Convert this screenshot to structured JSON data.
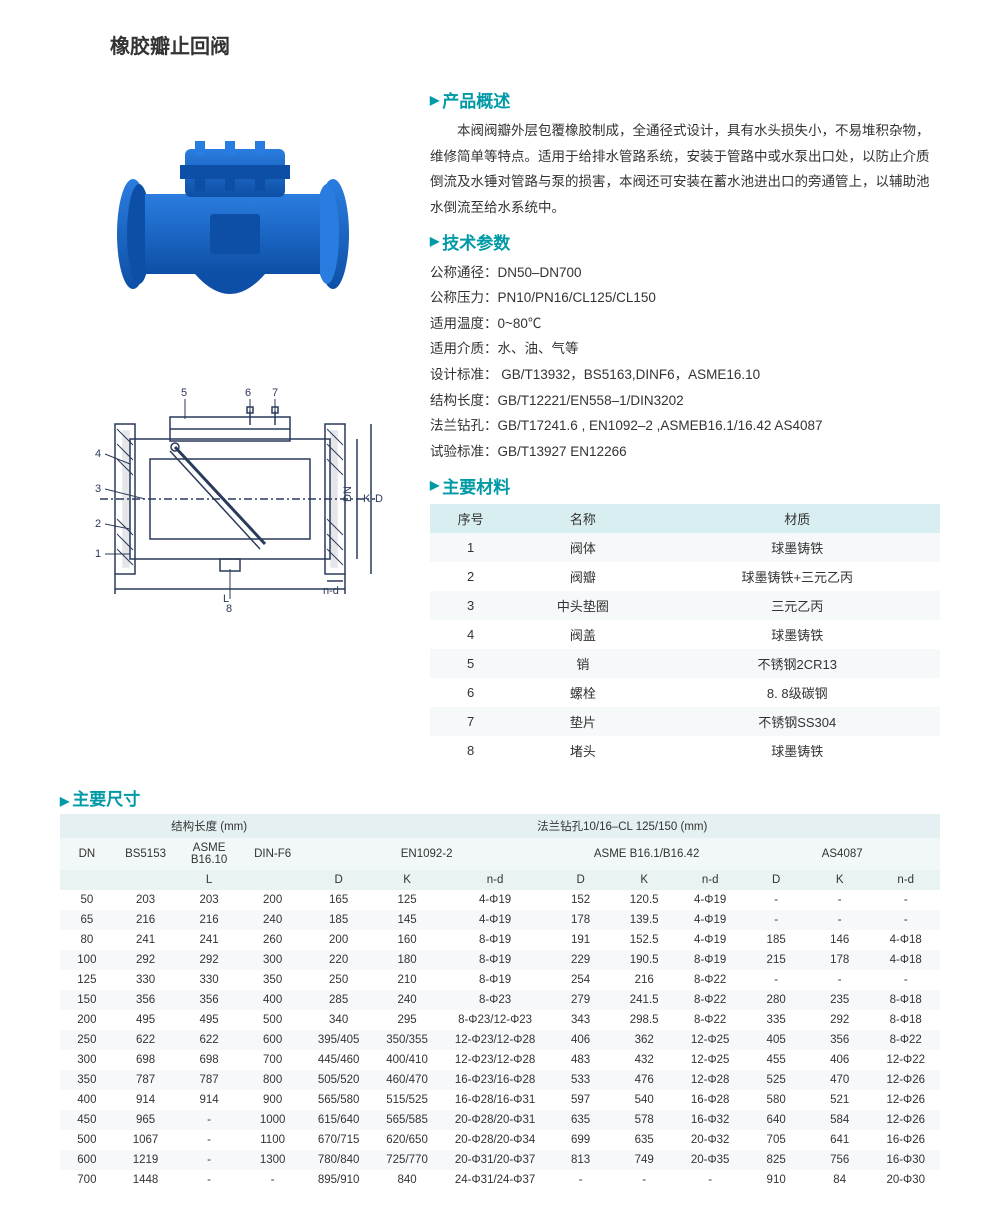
{
  "title": "橡胶瓣止回阀",
  "sections": {
    "overview": {
      "heading": "产品概述",
      "text": "本阀阀瓣外层包覆橡胶制成，全通径式设计，具有水头损失小，不易堆积杂物，维修简单等特点。适用于给排水管路系统，安装于管路中或水泵出口处，以防止介质倒流及水锤对管路与泵的损害，本阀还可安装在蓄水池进出口的旁通管上，以辅助池水倒流至给水系统中。"
    },
    "tech": {
      "heading": "技术参数",
      "lines": [
        "公称通径：DN50–DN700",
        "公称压力：PN10/PN16/CL125/CL150",
        "适用温度：0~80℃",
        "适用介质：水、油、气等",
        "设计标准： GB/T13932，BS5163,DINF6，ASME16.10",
        "结构长度：GB/T12221/EN558–1/DIN3202",
        "法兰钻孔：GB/T17241.6 , EN1092–2 ,ASMEB16.1/16.42 AS4087",
        "试验标准：GB/T13927  EN12266"
      ]
    },
    "materials": {
      "heading": "主要材料",
      "columns": [
        "序号",
        "名称",
        "材质"
      ],
      "rows": [
        [
          "1",
          "阀体",
          "球墨铸铁"
        ],
        [
          "2",
          "阀瓣",
          "球墨铸铁+三元乙丙"
        ],
        [
          "3",
          "中头垫圈",
          "三元乙丙"
        ],
        [
          "4",
          "阀盖",
          "球墨铸铁"
        ],
        [
          "5",
          "销",
          "不锈钢2CR13"
        ],
        [
          "6",
          "螺栓",
          "8. 8级碳钢"
        ],
        [
          "7",
          "垫片",
          "不锈钢SS304"
        ],
        [
          "8",
          "堵头",
          "球墨铸铁"
        ]
      ]
    },
    "dims": {
      "heading": "主要尺寸",
      "header_row1": {
        "g1": "结构长度  (mm)",
        "g2": "法兰钻孔10/16–CL 125/150 (mm)"
      },
      "header_row2": [
        "DN",
        "BS5153",
        "ASME B16.10",
        "DIN-F6",
        "EN1092-2",
        "ASME B16.1/B16.42",
        "AS4087"
      ],
      "header_row3": [
        "",
        "L",
        "",
        "",
        "D",
        "K",
        "n-d",
        "D",
        "K",
        "n-d",
        "D",
        "K",
        "n-d"
      ],
      "rows": [
        [
          "50",
          "203",
          "203",
          "200",
          "165",
          "125",
          "4-Φ19",
          "152",
          "120.5",
          "4-Φ19",
          "-",
          "-",
          "-"
        ],
        [
          "65",
          "216",
          "216",
          "240",
          "185",
          "145",
          "4-Φ19",
          "178",
          "139.5",
          "4-Φ19",
          "-",
          "-",
          "-"
        ],
        [
          "80",
          "241",
          "241",
          "260",
          "200",
          "160",
          "8-Φ19",
          "191",
          "152.5",
          "4-Φ19",
          "185",
          "146",
          "4-Φ18"
        ],
        [
          "100",
          "292",
          "292",
          "300",
          "220",
          "180",
          "8-Φ19",
          "229",
          "190.5",
          "8-Φ19",
          "215",
          "178",
          "4-Φ18"
        ],
        [
          "125",
          "330",
          "330",
          "350",
          "250",
          "210",
          "8-Φ19",
          "254",
          "216",
          "8-Φ22",
          "-",
          "-",
          "-"
        ],
        [
          "150",
          "356",
          "356",
          "400",
          "285",
          "240",
          "8-Φ23",
          "279",
          "241.5",
          "8-Φ22",
          "280",
          "235",
          "8-Φ18"
        ],
        [
          "200",
          "495",
          "495",
          "500",
          "340",
          "295",
          "8-Φ23/12-Φ23",
          "343",
          "298.5",
          "8-Φ22",
          "335",
          "292",
          "8-Φ18"
        ],
        [
          "250",
          "622",
          "622",
          "600",
          "395/405",
          "350/355",
          "12-Φ23/12-Φ28",
          "406",
          "362",
          "12-Φ25",
          "405",
          "356",
          "8-Φ22"
        ],
        [
          "300",
          "698",
          "698",
          "700",
          "445/460",
          "400/410",
          "12-Φ23/12-Φ28",
          "483",
          "432",
          "12-Φ25",
          "455",
          "406",
          "12-Φ22"
        ],
        [
          "350",
          "787",
          "787",
          "800",
          "505/520",
          "460/470",
          "16-Φ23/16-Φ28",
          "533",
          "476",
          "12-Φ28",
          "525",
          "470",
          "12-Φ26"
        ],
        [
          "400",
          "914",
          "914",
          "900",
          "565/580",
          "515/525",
          "16-Φ28/16-Φ31",
          "597",
          "540",
          "16-Φ28",
          "580",
          "521",
          "12-Φ26"
        ],
        [
          "450",
          "965",
          "-",
          "1000",
          "615/640",
          "565/585",
          "20-Φ28/20-Φ31",
          "635",
          "578",
          "16-Φ32",
          "640",
          "584",
          "12-Φ26"
        ],
        [
          "500",
          "1067",
          "-",
          "1100",
          "670/715",
          "620/650",
          "20-Φ28/20-Φ34",
          "699",
          "635",
          "20-Φ32",
          "705",
          "641",
          "16-Φ26"
        ],
        [
          "600",
          "1219",
          "-",
          "1300",
          "780/840",
          "725/770",
          "20-Φ31/20-Φ37",
          "813",
          "749",
          "20-Φ35",
          "825",
          "756",
          "16-Φ30"
        ],
        [
          "700",
          "1448",
          "-",
          "-",
          "895/910",
          "840",
          "24-Φ31/24-Φ37",
          "-",
          "-",
          "-",
          "910",
          "84",
          "20-Φ30"
        ]
      ]
    }
  },
  "colors": {
    "accent": "#009aa6",
    "header_bg": "#d9eef0",
    "alt_row": "#f5f9fa",
    "valve_blue": "#1568c8",
    "diagram_stroke": "#2a3a5a"
  }
}
